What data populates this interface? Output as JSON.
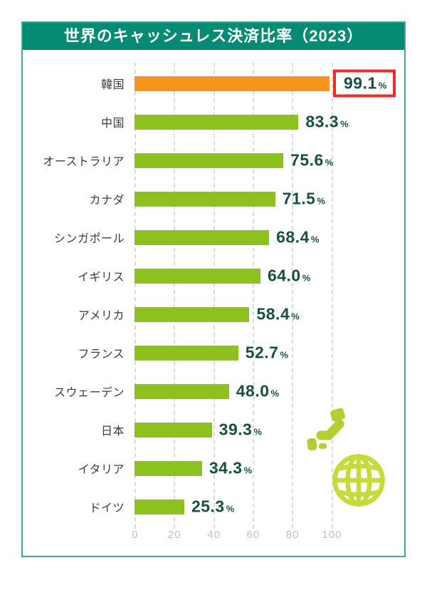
{
  "header": {
    "title": "世界のキャッシュレス決済比率（2023）"
  },
  "chart_data": {
    "type": "bar",
    "orientation": "horizontal",
    "title": "世界のキャッシュレス決済比率（2023）",
    "value_suffix": "%",
    "categories": [
      "韓国",
      "中国",
      "オーストラリア",
      "カナダ",
      "シンガポール",
      "イギリス",
      "アメリカ",
      "フランス",
      "スウェーデン",
      "日本",
      "イタリア",
      "ドイツ"
    ],
    "values": [
      99.1,
      83.3,
      75.6,
      71.5,
      68.4,
      64.0,
      58.4,
      52.7,
      48.0,
      39.3,
      34.3,
      25.3
    ],
    "value_decimals": 1,
    "highlight_index": 0,
    "x_ticks": [
      0,
      20,
      40,
      60,
      80,
      100
    ],
    "xlim": [
      0,
      137
    ],
    "grid": "vertical-dashed",
    "legend": "none"
  },
  "colors": {
    "header_bg": "#058A73",
    "card_border": "#46A495",
    "bar": "#8DC21E",
    "bar_highlight": "#F7941D",
    "highlight_box": "#EE2B2B",
    "value_text": "#18513F",
    "label_text": "#3C3C3C",
    "tick_text": "#C2C2C2",
    "gridline": "#DCDCDC",
    "japan_icon": "#B2CF33",
    "globe_icon": "#C6DA3B"
  },
  "icons": {
    "japan_map": "japan-map-icon",
    "globe": "globe-icon"
  }
}
